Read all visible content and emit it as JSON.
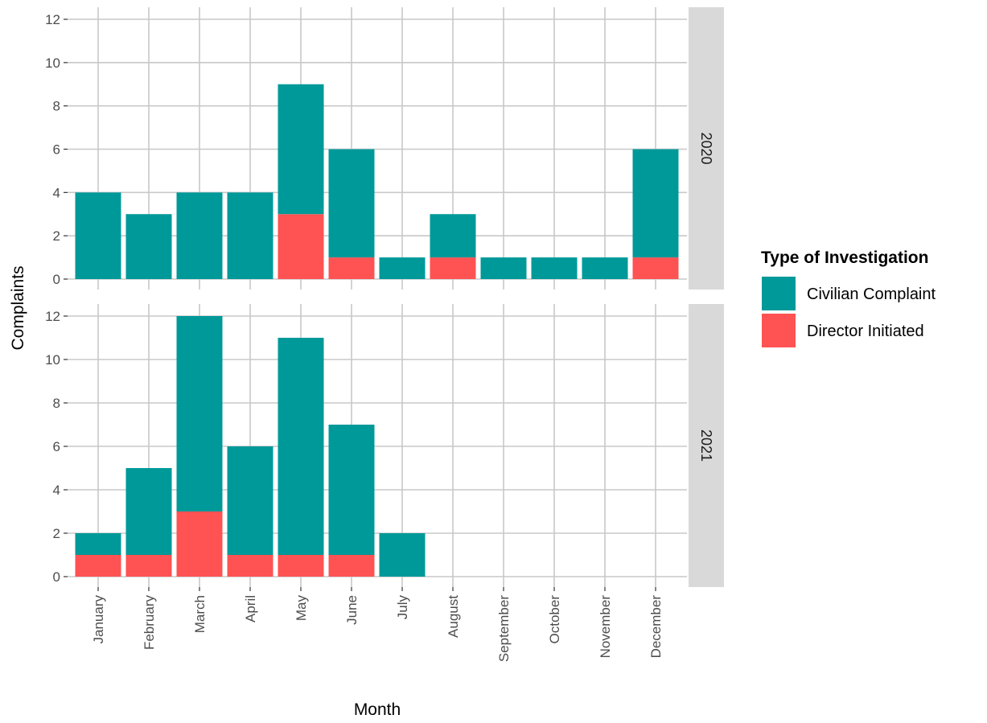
{
  "chart_data": {
    "type": "bar",
    "stacked": true,
    "facets": [
      "2020",
      "2021"
    ],
    "categories": [
      "January",
      "February",
      "March",
      "April",
      "May",
      "June",
      "July",
      "August",
      "September",
      "October",
      "November",
      "December"
    ],
    "xlabel": "Month",
    "ylabel": "Complaints",
    "ylim": [
      0,
      12
    ],
    "yticks": [
      0,
      2,
      4,
      6,
      8,
      10,
      12
    ],
    "grid": true,
    "legend": {
      "title": "Type of Investigation",
      "position": "right",
      "entries": [
        "Civilian Complaint",
        "Director Initiated"
      ]
    },
    "colors": {
      "Civilian Complaint": "#009999",
      "Director Initiated": "#FF5252",
      "grid": "#c8c8c8",
      "strip": "#d9d9d9"
    },
    "panels": [
      {
        "facet": "2020",
        "series": [
          {
            "name": "Director Initiated",
            "values": [
              0,
              0,
              0,
              0,
              3,
              1,
              0,
              1,
              0,
              0,
              0,
              1
            ]
          },
          {
            "name": "Civilian Complaint",
            "values": [
              4,
              3,
              4,
              4,
              6,
              5,
              1,
              2,
              1,
              1,
              1,
              5
            ]
          }
        ]
      },
      {
        "facet": "2021",
        "series": [
          {
            "name": "Director Initiated",
            "values": [
              1,
              1,
              3,
              1,
              1,
              1,
              0,
              0,
              0,
              0,
              0,
              0
            ]
          },
          {
            "name": "Civilian Complaint",
            "values": [
              1,
              4,
              9,
              5,
              10,
              6,
              2,
              0,
              0,
              0,
              0,
              0
            ]
          }
        ]
      }
    ]
  }
}
